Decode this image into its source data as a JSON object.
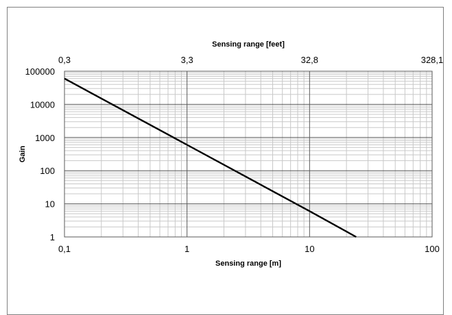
{
  "chart_data": {
    "type": "line",
    "title": "",
    "xlabel": "Sensing range [m]",
    "x2label": "Sensing range [feet]",
    "ylabel": "Gain",
    "xscale": "log",
    "yscale": "log",
    "xlim": [
      0.1,
      100
    ],
    "ylim": [
      1,
      100000
    ],
    "grid": true,
    "x_ticks": [
      "0,1",
      "1",
      "10",
      "100"
    ],
    "x2_ticks": [
      "0,3",
      "3,3",
      "32,8",
      "328,1"
    ],
    "y_ticks": [
      "1",
      "10",
      "100",
      "1000",
      "10000",
      "100000"
    ],
    "series": [
      {
        "x": [
          0.1,
          1,
          10,
          24
        ],
        "y": [
          60000,
          600,
          6,
          1
        ]
      }
    ]
  },
  "colors": {
    "line": "#000000",
    "major_grid": "#595959",
    "minor_grid": "#c8c8c8"
  }
}
